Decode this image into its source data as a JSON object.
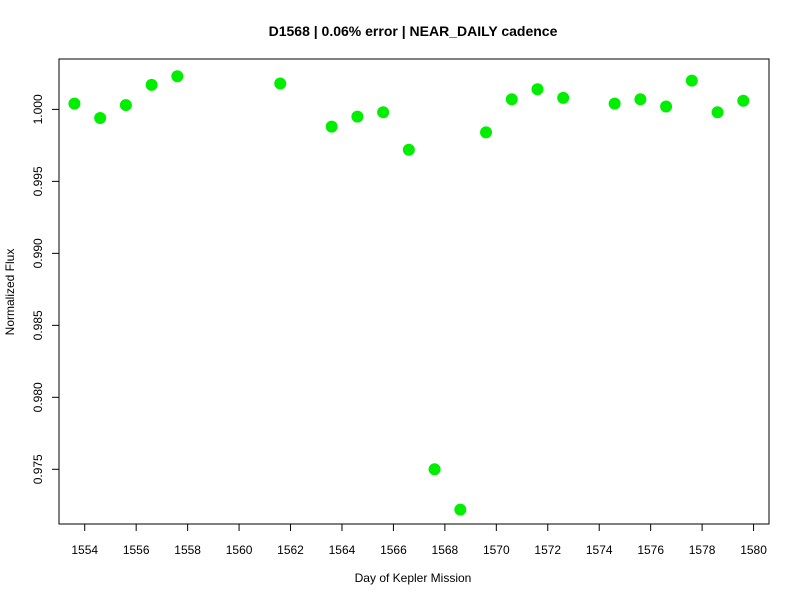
{
  "chart_data": {
    "type": "scatter",
    "title": "D1568 | 0.06% error | NEAR_DAILY cadence",
    "xlabel": "Day of Kepler Mission",
    "ylabel": "Normalized Flux",
    "xlim": [
      1553,
      1580.6
    ],
    "ylim": [
      0.9712,
      1.0035
    ],
    "xticks": [
      1554,
      1556,
      1558,
      1560,
      1562,
      1564,
      1566,
      1568,
      1570,
      1572,
      1574,
      1576,
      1578,
      1580
    ],
    "yticks": [
      0.975,
      0.98,
      0.985,
      0.99,
      0.995,
      1.0
    ],
    "ytick_labels": [
      "0.975",
      "0.980",
      "0.985",
      "0.990",
      "0.995",
      "1.000"
    ],
    "grid": false,
    "point_color": "#00ee00",
    "series": [
      {
        "x": [
          1553.6,
          1554.6,
          1555.6,
          1556.6,
          1557.6,
          1561.6,
          1563.6,
          1564.6,
          1565.6,
          1566.6,
          1567.6,
          1568.6,
          1569.6,
          1570.6,
          1571.6,
          1572.6,
          1574.6,
          1575.6,
          1576.6,
          1577.6,
          1578.6,
          1579.6
        ],
        "y": [
          1.0004,
          0.9994,
          1.0003,
          1.0017,
          1.0023,
          1.0018,
          0.9988,
          0.9995,
          0.9998,
          0.9972,
          0.975,
          0.9722,
          0.9984,
          1.0007,
          1.0014,
          1.0008,
          1.0004,
          1.0007,
          1.0002,
          1.002,
          0.9998,
          1.0006
        ]
      }
    ]
  }
}
